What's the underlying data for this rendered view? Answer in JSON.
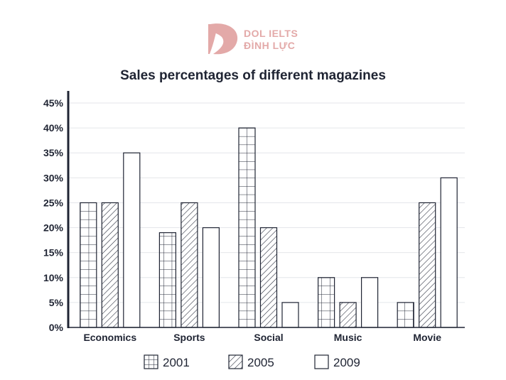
{
  "brand": {
    "line1": "DOL IELTS",
    "line2": "ĐÌNH LỰC",
    "logo_color": "#e3a9a8"
  },
  "chart_data": {
    "type": "bar",
    "title": "Sales percentages of different magazines",
    "xlabel": "",
    "ylabel": "",
    "ylim": [
      0,
      45
    ],
    "y_ticks": [
      "0%",
      "5%",
      "10%",
      "15%",
      "20%",
      "25%",
      "30%",
      "35%",
      "40%",
      "45%"
    ],
    "y_tick_values": [
      0,
      5,
      10,
      15,
      20,
      25,
      30,
      35,
      40,
      45
    ],
    "grid": true,
    "legend_position": "bottom",
    "categories": [
      "Economics",
      "Sports",
      "Social",
      "Music",
      "Movie"
    ],
    "series": [
      {
        "name": "2001",
        "pattern": "grid",
        "values": [
          25,
          19,
          40,
          10,
          5
        ]
      },
      {
        "name": "2005",
        "pattern": "hatch",
        "values": [
          25,
          25,
          20,
          5,
          25
        ]
      },
      {
        "name": "2009",
        "pattern": "plain",
        "values": [
          35,
          20,
          5,
          10,
          30
        ]
      }
    ]
  }
}
